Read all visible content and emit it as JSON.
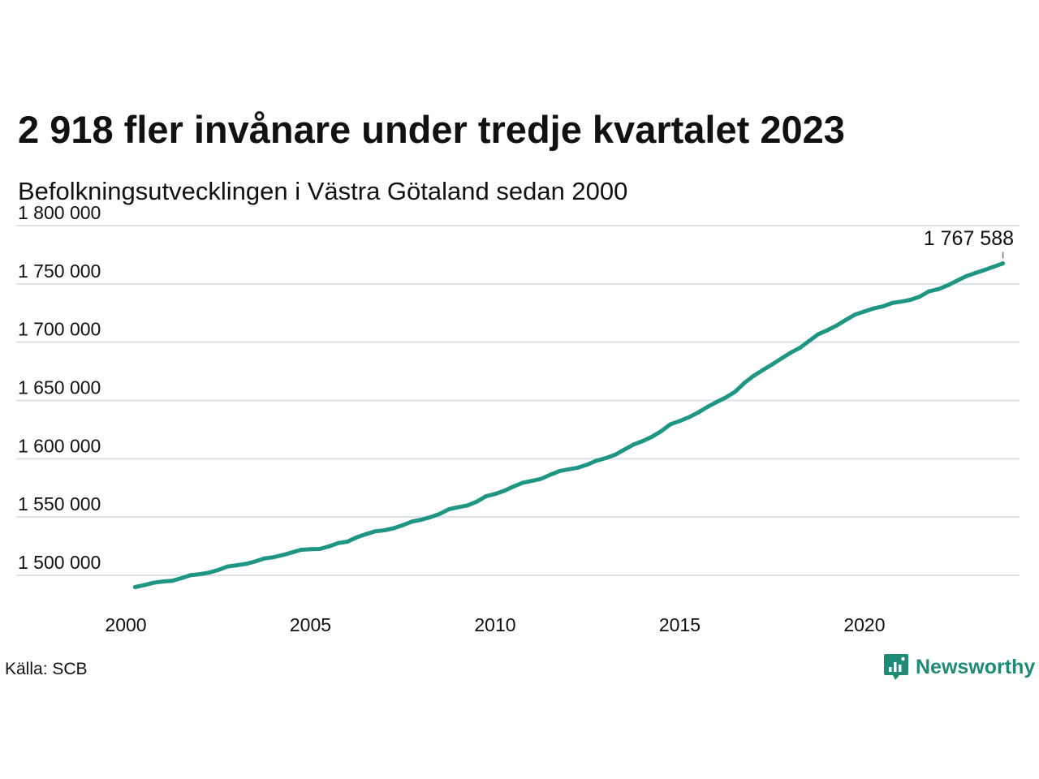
{
  "title": "2 918 fler invånare under tredje kvartalet 2023",
  "subtitle": "Befolkningsutvecklingen i Västra Götaland sedan 2000",
  "source": "Källa: SCB",
  "brand": "Newsworthy",
  "colors": {
    "line": "#1f9683",
    "grid": "#dcdfe4",
    "brand": "#1f8a75"
  },
  "chart_data": {
    "type": "line",
    "title": "2 918 fler invånare under tredje kvartalet 2023",
    "subtitle": "Befolkningsutvecklingen i Västra Götaland sedan 2000",
    "xlabel": "",
    "ylabel": "",
    "x_ticks": [
      "2000",
      "2005",
      "2010",
      "2015",
      "2020"
    ],
    "y_ticks": [
      "1 500 000",
      "1 550 000",
      "1 600 000",
      "1 650 000",
      "1 700 000",
      "1 750 000",
      "1 800 000"
    ],
    "ylim": [
      1500000,
      1800000
    ],
    "xlim": [
      2000,
      2024.2
    ],
    "grid": true,
    "end_label": "1 767 588",
    "x": [
      2000.25,
      2000.5,
      2000.75,
      2001.0,
      2001.25,
      2001.5,
      2001.75,
      2002.0,
      2002.25,
      2002.5,
      2002.75,
      2003.0,
      2003.25,
      2003.5,
      2003.75,
      2004.0,
      2004.25,
      2004.5,
      2004.75,
      2005.0,
      2005.25,
      2005.5,
      2005.75,
      2006.0,
      2006.25,
      2006.5,
      2006.75,
      2007.0,
      2007.25,
      2007.5,
      2007.75,
      2008.0,
      2008.25,
      2008.5,
      2008.75,
      2009.0,
      2009.25,
      2009.5,
      2009.75,
      2010.0,
      2010.25,
      2010.5,
      2010.75,
      2011.0,
      2011.25,
      2011.5,
      2011.75,
      2012.0,
      2012.25,
      2012.5,
      2012.75,
      2013.0,
      2013.25,
      2013.5,
      2013.75,
      2014.0,
      2014.25,
      2014.5,
      2014.75,
      2015.0,
      2015.25,
      2015.5,
      2015.75,
      2016.0,
      2016.25,
      2016.5,
      2016.75,
      2017.0,
      2017.25,
      2017.5,
      2017.75,
      2018.0,
      2018.25,
      2018.5,
      2018.75,
      2019.0,
      2019.25,
      2019.5,
      2019.75,
      2020.0,
      2020.25,
      2020.5,
      2020.75,
      2021.0,
      2021.25,
      2021.5,
      2021.75,
      2022.0,
      2022.25,
      2022.5,
      2022.75,
      2023.0,
      2023.25,
      2023.5,
      2023.75
    ],
    "values": [
      1489900,
      1491600,
      1493600,
      1494700,
      1495300,
      1497500,
      1500100,
      1501000,
      1502300,
      1504500,
      1507500,
      1508600,
      1509800,
      1511800,
      1514500,
      1515500,
      1517400,
      1519600,
      1521900,
      1522400,
      1522600,
      1524800,
      1527600,
      1528900,
      1532600,
      1535300,
      1537700,
      1538600,
      1540400,
      1543000,
      1546100,
      1547700,
      1549900,
      1552700,
      1556700,
      1558400,
      1559900,
      1563100,
      1567800,
      1569800,
      1572500,
      1576200,
      1579400,
      1581000,
      1582800,
      1586400,
      1589500,
      1591000,
      1592400,
      1595000,
      1598400,
      1600600,
      1603400,
      1607800,
      1612200,
      1615200,
      1618900,
      1623700,
      1629600,
      1632400,
      1635600,
      1639700,
      1644500,
      1648700,
      1652600,
      1657500,
      1665000,
      1671100,
      1676100,
      1680900,
      1686000,
      1690900,
      1695100,
      1701000,
      1706800,
      1710300,
      1714300,
      1719100,
      1723700,
      1726300,
      1728900,
      1730700,
      1733600,
      1734800,
      1736300,
      1739100,
      1743600,
      1745400,
      1748700,
      1752600,
      1756500,
      1759300,
      1761900,
      1764700,
      1767588
    ]
  }
}
